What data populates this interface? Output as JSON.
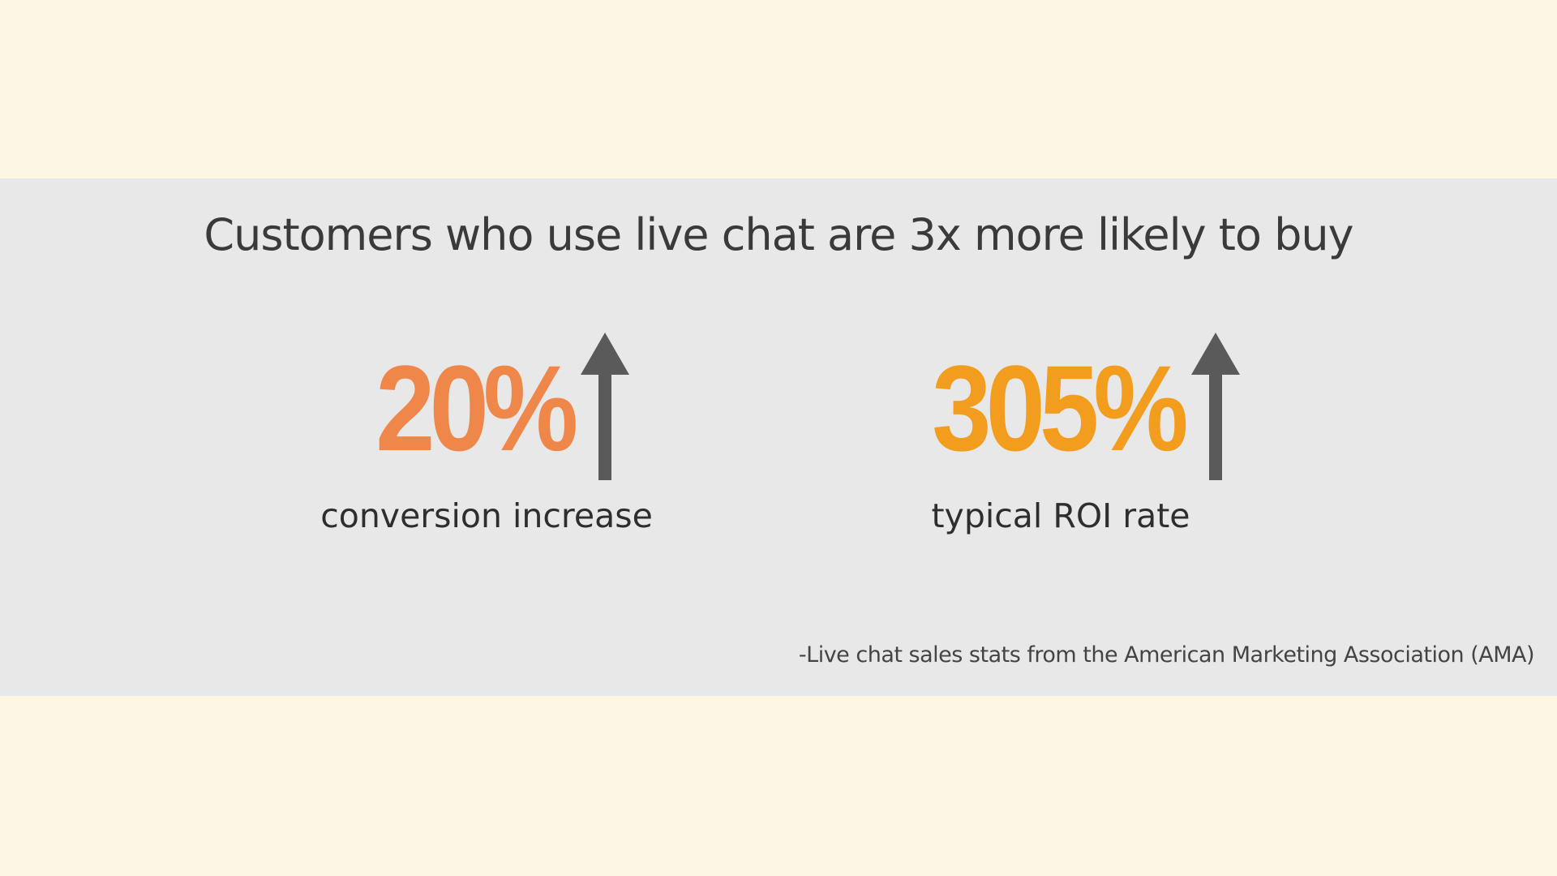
{
  "title": "Customers who use live chat are 3x more likely to buy",
  "stats": [
    {
      "value": "20%",
      "label": "conversion increase"
    },
    {
      "value": "305%",
      "label": "typical ROI rate"
    }
  ],
  "source": "-Live chat sales stats from the American Marketing Association (AMA)"
}
